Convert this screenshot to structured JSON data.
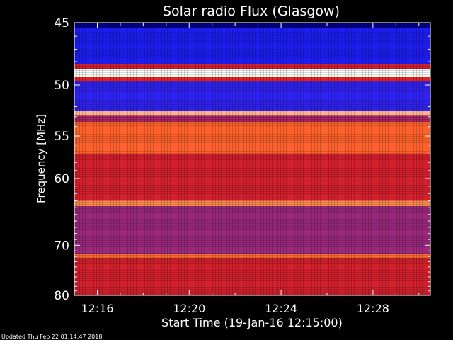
{
  "chart_data": {
    "type": "heatmap",
    "title": "Solar radio Flux (Glasgow)",
    "xlabel": "Start Time (19-Jan-16 12:15:00)",
    "ylabel": "Frequency [MHz]",
    "x_tick_labels": [
      "12:16",
      "12:20",
      "12:24",
      "12:28"
    ],
    "x_tick_minutes": [
      1,
      5,
      9,
      13
    ],
    "xlim_minutes": [
      0,
      15.5
    ],
    "y_tick_labels": [
      "45",
      "50",
      "55",
      "60",
      "70",
      "80"
    ],
    "y_tick_values": [
      45,
      50,
      55,
      60,
      70,
      80
    ],
    "ylim": [
      45,
      80
    ],
    "y_scale": "reciprocal",
    "footer": "Updated Thu Feb 22 01:14:47 2018",
    "colormap": [
      "#000080",
      "#2020ff",
      "#7030c0",
      "#c02040",
      "#ff2000",
      "#ff8040",
      "#ffffff"
    ],
    "bands": [
      {
        "fmin": 45.0,
        "fmax": 45.4,
        "level": 0.0
      },
      {
        "fmin": 45.4,
        "fmax": 48.2,
        "level": 0.15
      },
      {
        "fmin": 48.2,
        "fmax": 48.6,
        "level": 0.55
      },
      {
        "fmin": 48.6,
        "fmax": 49.3,
        "level": 1.0
      },
      {
        "fmin": 49.3,
        "fmax": 49.7,
        "level": 0.6
      },
      {
        "fmin": 49.7,
        "fmax": 52.4,
        "level": 0.2
      },
      {
        "fmin": 52.4,
        "fmax": 52.9,
        "level": 0.9
      },
      {
        "fmin": 52.9,
        "fmax": 53.5,
        "level": 0.45
      },
      {
        "fmin": 53.5,
        "fmax": 57.0,
        "level": 0.78
      },
      {
        "fmin": 57.0,
        "fmax": 63.0,
        "level": 0.55
      },
      {
        "fmin": 63.0,
        "fmax": 63.8,
        "level": 0.85
      },
      {
        "fmin": 63.8,
        "fmax": 71.5,
        "level": 0.42
      },
      {
        "fmin": 71.5,
        "fmax": 72.3,
        "level": 0.8
      },
      {
        "fmin": 72.3,
        "fmax": 80.0,
        "level": 0.55
      }
    ]
  }
}
